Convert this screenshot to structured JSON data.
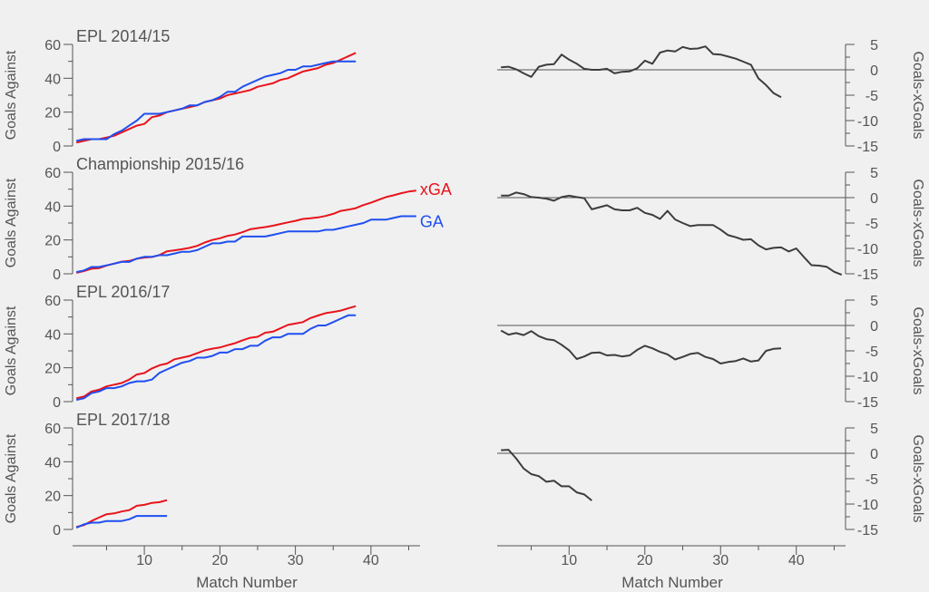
{
  "chart_data": {
    "type": "line",
    "xlabel": "Match Number",
    "ylabel_left": "Goals Against",
    "ylabel_right": "Goals-xGoals",
    "x_ticks": [
      10,
      20,
      30,
      40
    ],
    "left_ylim": [
      0,
      60
    ],
    "left_yticks": [
      0,
      20,
      40,
      60
    ],
    "right_ylim": [
      -15,
      5
    ],
    "right_yticks": [
      5,
      0,
      -5,
      -10,
      -15
    ],
    "xlim": [
      0.5,
      46.5
    ],
    "legend": [
      {
        "name": "xGA",
        "color": "#e8141c"
      },
      {
        "name": "GA",
        "color": "#1f4ff0"
      }
    ],
    "colors": {
      "xga": "#e8141c",
      "ga": "#1f4ff0",
      "diff": "#3d3d3d",
      "background": "#f0f0f0",
      "axis": "#555555"
    },
    "panels": [
      {
        "title": "EPL 2014/15",
        "ga": [
          3,
          4,
          4,
          4,
          4,
          7,
          9,
          12,
          15,
          19,
          19,
          19,
          20,
          21,
          22,
          24,
          24,
          26,
          27,
          29,
          32,
          32,
          35,
          37,
          39,
          41,
          42,
          43,
          45,
          45,
          47,
          47,
          48,
          49,
          50,
          50,
          50,
          50
        ],
        "xga": [
          2,
          3,
          4,
          4,
          5,
          6,
          8,
          10,
          12,
          13,
          17,
          18,
          20,
          21,
          22,
          23,
          24,
          26,
          27,
          28,
          30,
          31,
          32,
          33,
          35,
          36,
          37,
          39,
          40,
          42,
          44,
          45,
          46,
          48,
          49,
          51,
          53,
          55
        ],
        "diff": [
          0.5,
          0.6,
          0.1,
          -0.7,
          -1.4,
          0.6,
          1.0,
          1.1,
          3.0,
          2.0,
          1.2,
          0.2,
          0.0,
          0.0,
          0.2,
          -0.7,
          -0.4,
          -0.3,
          0.3,
          1.8,
          1.2,
          3.4,
          3.8,
          3.6,
          4.5,
          4.1,
          4.2,
          4.6,
          3.1,
          3.0,
          2.6,
          2.2,
          1.6,
          1.0,
          -1.7,
          -3.0,
          -4.6,
          -5.4
        ]
      },
      {
        "title": "Championship 2015/16",
        "ga": [
          1,
          2,
          4,
          4,
          5,
          6,
          7,
          7,
          9,
          10,
          10,
          11,
          11,
          12,
          13,
          13,
          14,
          16,
          18,
          18,
          19,
          19,
          22,
          22,
          22,
          22,
          23,
          24,
          25,
          25,
          25,
          25,
          25,
          26,
          26,
          27,
          28,
          29,
          30,
          32,
          32,
          32,
          33,
          34,
          34,
          34
        ],
        "xga": [
          0.6,
          1.6,
          3,
          3.3,
          4.9,
          6,
          7.2,
          7.6,
          8.9,
          9.6,
          9.9,
          11.1,
          13.3,
          13.9,
          14.5,
          15.3,
          16.5,
          18.5,
          20,
          21,
          22.4,
          23.2,
          24.6,
          26.3,
          27,
          27.6,
          28.4,
          29.4,
          30.4,
          31.3,
          32.4,
          32.8,
          33.3,
          34.2,
          35.4,
          37.2,
          37.9,
          38.8,
          40.6,
          42,
          43.7,
          45.3,
          46.4,
          47.6,
          48.6,
          49.2
        ],
        "diff": [
          0.4,
          0.4,
          1.0,
          0.7,
          0.1,
          0.0,
          -0.2,
          -0.6,
          0.1,
          0.4,
          0.1,
          -0.1,
          -2.3,
          -1.9,
          -1.5,
          -2.3,
          -2.5,
          -2.5,
          -2.0,
          -3.0,
          -3.4,
          -4.2,
          -2.6,
          -4.3,
          -5.0,
          -5.6,
          -5.4,
          -5.4,
          -5.4,
          -6.3,
          -7.4,
          -7.8,
          -8.3,
          -8.2,
          -9.4,
          -10.2,
          -9.9,
          -9.8,
          -10.6,
          -10.0,
          -11.7,
          -13.3,
          -13.4,
          -13.6,
          -14.6,
          -15.2
        ]
      },
      {
        "title": "EPL 2016/17",
        "ga": [
          1,
          2,
          5,
          6,
          8,
          8,
          9,
          11,
          12,
          12,
          13,
          17,
          19,
          21,
          23,
          24,
          26,
          26,
          27,
          29,
          29,
          31,
          31,
          33,
          33,
          36,
          38,
          38,
          40,
          40,
          40,
          43,
          45,
          45,
          47,
          49,
          51,
          51
        ],
        "xga": [
          2,
          3,
          6,
          7,
          9,
          10,
          11,
          13,
          16,
          16.9,
          19.6,
          21.5,
          22.5,
          25,
          26,
          27,
          28.6,
          30.3,
          31.3,
          32,
          33.3,
          34.5,
          36.2,
          37.7,
          38.3,
          40.7,
          41.3,
          43.3,
          45.3,
          46.1,
          47,
          49.4,
          50.9,
          52.3,
          53,
          53.8,
          55.1,
          56.4
        ],
        "diff": [
          -1.0,
          -1.8,
          -1.5,
          -1.9,
          -1.1,
          -2.1,
          -2.7,
          -2.9,
          -3.8,
          -4.9,
          -6.6,
          -6.1,
          -5.4,
          -5.3,
          -5.9,
          -5.8,
          -6.1,
          -5.9,
          -4.8,
          -4.0,
          -4.5,
          -5.2,
          -5.7,
          -6.7,
          -6.2,
          -5.6,
          -5.4,
          -6.2,
          -6.6,
          -7.5,
          -7.2,
          -7.0,
          -6.5,
          -7.1,
          -6.9,
          -5.0,
          -4.6,
          -4.5
        ]
      },
      {
        "title": "EPL 2017/18",
        "ga": [
          1,
          3,
          4,
          4,
          5,
          5,
          5,
          6,
          8,
          8,
          8,
          8,
          8
        ],
        "xga": [
          1.5,
          2.5,
          5,
          7,
          9,
          9.5,
          10.6,
          11.4,
          14,
          14.5,
          15.7,
          16.1,
          17.3
        ],
        "diff": [
          0.6,
          0.7,
          -1,
          -3,
          -4.1,
          -4.5,
          -5.6,
          -5.4,
          -6.5,
          -6.5,
          -7.7,
          -8.1,
          -9.3
        ]
      }
    ]
  }
}
